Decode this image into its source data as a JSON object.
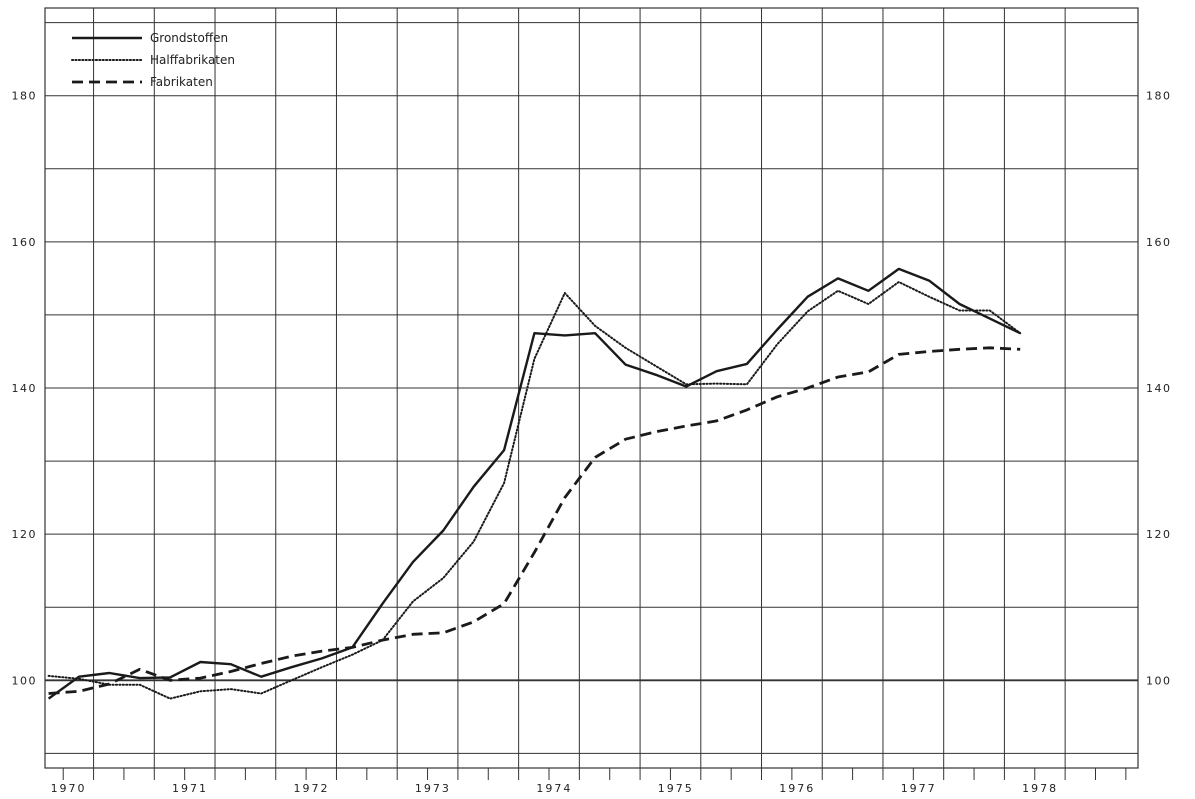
{
  "chart_data": {
    "type": "line",
    "title": "",
    "xlabel": "",
    "ylabel": "",
    "xlim": [
      1969.6,
      1978.6
    ],
    "ylim": [
      88,
      192
    ],
    "grid": true,
    "y_ticks": [
      100,
      120,
      140,
      160,
      180
    ],
    "y_tick_labels": [
      "100",
      "120",
      "140",
      "160",
      "180"
    ],
    "x_tick_labels": [
      {
        "label": "1970",
        "x": 1970.0
      },
      {
        "label": "1971",
        "x": 1971.0
      },
      {
        "label": "1972",
        "x": 1972.0
      },
      {
        "label": "1973",
        "x": 1973.0
      },
      {
        "label": "1974",
        "x": 1974.0
      },
      {
        "label": "1975",
        "x": 1975.0
      },
      {
        "label": "1976",
        "x": 1976.0
      },
      {
        "label": "1977",
        "x": 1977.0
      },
      {
        "label": "1978",
        "x": 1978.0
      }
    ],
    "legend_position": "top-left",
    "colors": {
      "line": "#1a1a1a",
      "grid": "#333333",
      "background": "#ffffff"
    },
    "series": [
      {
        "name": "Grondstoffen",
        "style": "solid",
        "x": [
          1969.63,
          1969.88,
          1970.13,
          1970.38,
          1970.63,
          1970.88,
          1971.13,
          1971.38,
          1971.63,
          1971.88,
          1972.13,
          1972.38,
          1972.63,
          1972.88,
          1973.13,
          1973.38,
          1973.63,
          1973.88,
          1974.13,
          1974.38,
          1974.63,
          1974.88,
          1975.13,
          1975.38,
          1975.63,
          1975.88,
          1976.13,
          1976.38,
          1976.63,
          1976.88,
          1977.13,
          1977.38,
          1977.63
        ],
        "y": [
          97.5,
          100.5,
          101.0,
          100.3,
          100.4,
          102.5,
          102.2,
          100.5,
          101.8,
          103.0,
          104.5,
          110.5,
          116.2,
          120.5,
          126.5,
          131.5,
          147.5,
          147.2,
          147.5,
          143.2,
          141.8,
          140.2,
          142.3,
          143.3,
          148.0,
          152.5,
          155.0,
          153.3,
          156.3,
          154.7,
          151.5,
          149.5,
          147.5
        ]
      },
      {
        "name": "Halffabrikaten",
        "style": "dotted",
        "x": [
          1969.63,
          1969.88,
          1970.13,
          1970.38,
          1970.63,
          1970.88,
          1971.13,
          1971.38,
          1971.63,
          1971.88,
          1972.13,
          1972.38,
          1972.63,
          1972.88,
          1973.13,
          1973.38,
          1973.63,
          1973.88,
          1974.13,
          1974.38,
          1974.63,
          1974.88,
          1975.13,
          1975.38,
          1975.63,
          1975.88,
          1976.13,
          1976.38,
          1976.63,
          1976.88,
          1977.13,
          1977.38,
          1977.63
        ],
        "y": [
          100.6,
          100.2,
          99.4,
          99.4,
          97.5,
          98.5,
          98.8,
          98.2,
          100.0,
          101.8,
          103.5,
          105.5,
          110.8,
          114.0,
          119.0,
          127.0,
          144.0,
          153.0,
          148.5,
          145.5,
          143.0,
          140.5,
          140.6,
          140.5,
          146.0,
          150.5,
          153.3,
          151.5,
          154.5,
          152.5,
          150.6,
          150.6,
          147.5
        ]
      },
      {
        "name": "Fabrikaten",
        "style": "dashed",
        "x": [
          1969.63,
          1969.88,
          1970.13,
          1970.38,
          1970.63,
          1970.88,
          1971.13,
          1971.38,
          1971.63,
          1971.88,
          1972.13,
          1972.38,
          1972.63,
          1972.88,
          1973.13,
          1973.38,
          1973.63,
          1973.88,
          1974.13,
          1974.38,
          1974.63,
          1974.88,
          1975.13,
          1975.38,
          1975.63,
          1975.88,
          1976.13,
          1976.38,
          1976.63,
          1976.88,
          1977.13,
          1977.38,
          1977.63
        ],
        "y": [
          98.2,
          98.5,
          99.5,
          101.5,
          100.0,
          100.3,
          101.2,
          102.3,
          103.3,
          104.0,
          104.5,
          105.5,
          106.3,
          106.5,
          108.0,
          110.5,
          117.5,
          125.0,
          130.5,
          133.0,
          134.0,
          134.8,
          135.5,
          137.0,
          138.8,
          140.0,
          141.5,
          142.2,
          144.6,
          145.0,
          145.3,
          145.5,
          145.3
        ]
      }
    ]
  }
}
